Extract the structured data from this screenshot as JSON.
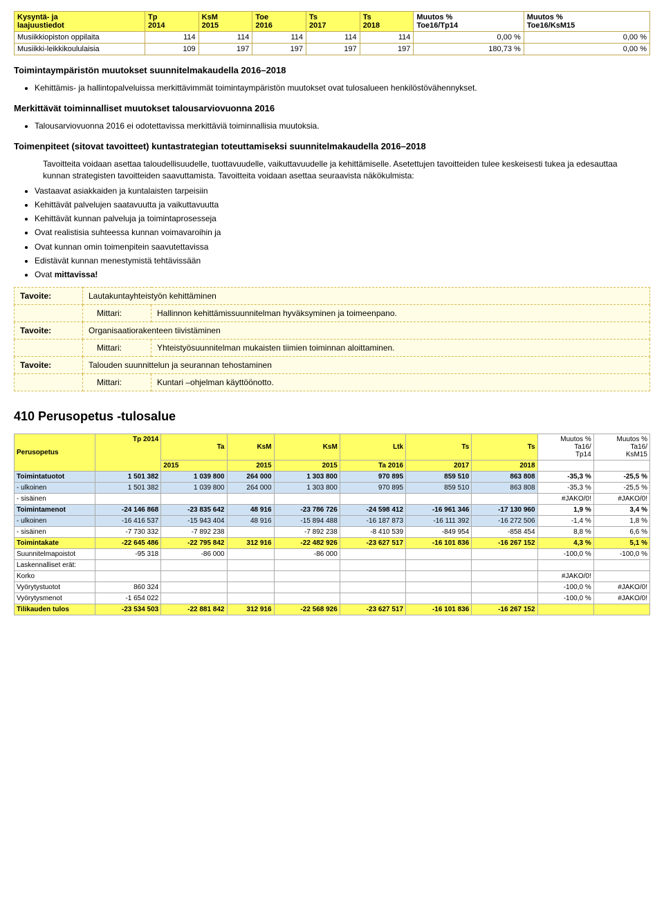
{
  "table1": {
    "headers": {
      "c0a": "Kysyntä- ja",
      "c0b": "laajuustiedot",
      "c1a": "Tp",
      "c1b": "2014",
      "c2a": "KsM",
      "c2b": "2015",
      "c3a": "Toe",
      "c3b": "2016",
      "c4a": "Ts",
      "c4b": "2017",
      "c5a": "Ts",
      "c5b": "2018",
      "c6a": "Muutos %",
      "c6b": "Toe16/Tp14",
      "c7a": "Muutos %",
      "c7b": "Toe16/KsM15"
    },
    "rows": [
      {
        "label": "Musiikkiopiston oppilaita",
        "v": [
          "114",
          "114",
          "114",
          "114",
          "114",
          "0,00 %",
          "0,00 %"
        ]
      },
      {
        "label": "Musiikki-leikkikoululaisia",
        "v": [
          "109",
          "197",
          "197",
          "197",
          "197",
          "180,73 %",
          "0,00 %"
        ]
      }
    ]
  },
  "sections": {
    "s1": "Toimintaympäristön muutokset suunnitelmakaudella 2016–2018",
    "s1_bullet": "Kehittämis- ja hallintopalveluissa merkittävimmät toimintaympäristön muutokset ovat tulosalueen henkilöstövähennykset.",
    "s2": "Merkittävät toiminnalliset muutokset talousarviovuonna 2016",
    "s2_bullet": "Talousarviovuonna 2016 ei odotettavissa merkittäviä toiminnallisia muutoksia.",
    "s3": "Toimenpiteet (sitovat tavoitteet) kuntastrategian toteuttamiseksi suunnitelmakaudella 2016–2018",
    "s3_para": "Tavoitteita voidaan asettaa taloudellisuudelle, tuottavuudelle, vaikuttavuudelle ja kehittämiselle. Asetettujen tavoitteiden tulee keskeisesti tukea ja edesauttaa kunnan strategisten tavoitteiden saavuttamista. Tavoitteita voidaan asettaa seuraavista näkökulmista:",
    "s3_bullets": [
      "Vastaavat asiakkaiden ja kuntalaisten tarpeisiin",
      "Kehittävät palvelujen saatavuutta ja vaikuttavuutta",
      "Kehittävät kunnan palveluja ja toimintaprosesseja",
      "Ovat realistisia suhteessa kunnan voimavaroihin ja",
      "Ovat kunnan omin toimenpitein saavutettavissa",
      "Edistävät kunnan menestymistä tehtävissään"
    ],
    "s3_last_prefix": "Ovat ",
    "s3_last_bold": "mittavissa!"
  },
  "tavoite": {
    "label_tavoite": "Tavoite:",
    "label_mittari": "Mittari:",
    "rows": [
      {
        "t": "Lautakuntayhteistyön kehittäminen",
        "m": "Hallinnon kehittämissuunnitelman hyväksyminen ja toimeenpano."
      },
      {
        "t": "Organisaatiorakenteen tiivistäminen",
        "m": "Yhteistyösuunnitelman mukaisten tiimien toiminnan aloittaminen."
      },
      {
        "t": "Talouden suunnittelun ja seurannan tehostaminen",
        "m": "Kuntari –ohjelman käyttöönotto."
      }
    ]
  },
  "section410": "410 Perusopetus -tulosalue",
  "budget": {
    "headers": {
      "c0": "Perusopetus",
      "c1a": "Tp 2014",
      "c1b": "",
      "c2a": "Ta",
      "c2b": "2015",
      "c3a": "KsM",
      "c3b": "2015",
      "c4a": "KsM",
      "c4b": "2015",
      "c5a": "Ltk",
      "c5b": "Ta 2016",
      "c6a": "Ts",
      "c6b": "2017",
      "c7a": "Ts",
      "c7b": "2018",
      "c8a": "Muutos %",
      "c8b": "Ta16/",
      "c8c": "Tp14",
      "c9a": "Muutos %",
      "c9b": "Ta16/",
      "c9c": "KsM15"
    },
    "rows": [
      {
        "cls": "row-blue bold-row",
        "label": "Toimintatuotot",
        "v": [
          "1 501 382",
          "1 039 800",
          "264 000",
          "1 303 800",
          "970 895",
          "859 510",
          "863 808",
          "-35,3 %",
          "-25,5 %"
        ]
      },
      {
        "cls": "row-blue",
        "label": "  - ulkoinen",
        "v": [
          "1 501 382",
          "1 039 800",
          "264 000",
          "1 303 800",
          "970 895",
          "859 510",
          "863 808",
          "-35,3 %",
          "-25,5 %"
        ],
        "whiteCols": []
      },
      {
        "cls": "",
        "label": "  - sisäinen",
        "v": [
          "",
          "",
          "",
          "",
          "",
          "",
          "",
          "#JAKO/0!",
          "#JAKO/0!"
        ]
      },
      {
        "cls": "row-blue bold-row",
        "label": "Toimintamenot",
        "v": [
          "-24 146 868",
          "-23 835 642",
          "48 916",
          "-23 786 726",
          "-24 598 412",
          "-16 961 346",
          "-17 130 960",
          "1,9 %",
          "3,4 %"
        ]
      },
      {
        "cls": "row-blue",
        "label": "  - ulkoinen",
        "v": [
          "-16 416 537",
          "-15 943 404",
          "48 916",
          "-15 894 488",
          "-16 187 873",
          "-16 111 392",
          "-16 272 506",
          "-1,4 %",
          "1,8 %"
        ],
        "whiteCols": []
      },
      {
        "cls": "",
        "label": "  - sisäinen",
        "v": [
          "-7 730 332",
          "-7 892 238",
          "",
          "-7 892 238",
          "-8 410 539",
          "-849 954",
          "-858 454",
          "8,8 %",
          "6,6 %"
        ]
      },
      {
        "cls": "row-yellow",
        "label": "Toimintakate",
        "v": [
          "-22 645 486",
          "-22 795 842",
          "312 916",
          "-22 482 926",
          "-23 627 517",
          "-16 101 836",
          "-16 267 152",
          "4,3 %",
          "5,1 %"
        ]
      },
      {
        "cls": "",
        "label": "Suunnitelmapoistot",
        "v": [
          "-95 318",
          "-86 000",
          "",
          "-86 000",
          "",
          "",
          "",
          "-100,0 %",
          "-100,0 %"
        ]
      },
      {
        "cls": "",
        "label": "Laskennalliset erät:",
        "v": [
          "",
          "",
          "",
          "",
          "",
          "",
          "",
          "",
          ""
        ]
      },
      {
        "cls": "",
        "label": "  Korko",
        "v": [
          "",
          "",
          "",
          "",
          "",
          "",
          "",
          "#JAKO/0!",
          ""
        ]
      },
      {
        "cls": "",
        "label": "  Vyörytystuotot",
        "v": [
          "860 324",
          "",
          "",
          "",
          "",
          "",
          "",
          "-100,0 %",
          "#JAKO/0!"
        ]
      },
      {
        "cls": "",
        "label": "  Vyörytysmenot",
        "v": [
          "-1 654 022",
          "",
          "",
          "",
          "",
          "",
          "",
          "-100,0 %",
          "#JAKO/0!"
        ]
      },
      {
        "cls": "row-yellow",
        "label": "Tilikauden tulos",
        "v": [
          "-23 534 503",
          "-22 881 842",
          "312 916",
          "-22 568 926",
          "-23 627 517",
          "-16 101 836",
          "-16 267 152",
          "",
          ""
        ]
      }
    ]
  }
}
